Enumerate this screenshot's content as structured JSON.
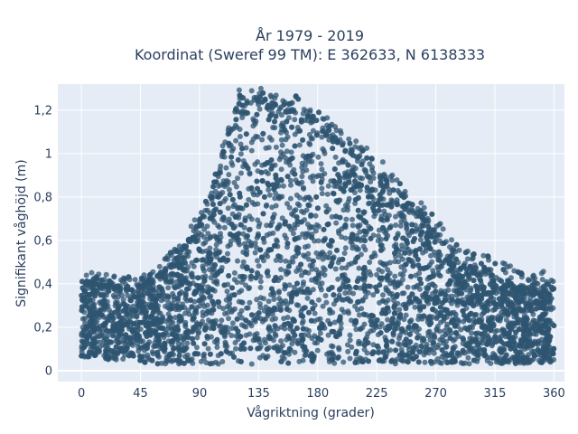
{
  "chart_data": {
    "type": "scatter",
    "title_line1": "År 1979 - 2019",
    "title_line2": "Koordinat (Sweref 99 TM): E 362633, N 6138333",
    "xlabel": "Vågriktning (grader)",
    "ylabel": "Signifikant våghöjd (m)",
    "xlim": [
      -18,
      368
    ],
    "ylim": [
      -0.05,
      1.32
    ],
    "x_ticks": [
      0,
      45,
      90,
      135,
      180,
      225,
      270,
      315,
      360
    ],
    "x_tick_labels": [
      "0",
      "45",
      "90",
      "135",
      "180",
      "225",
      "270",
      "315",
      "360"
    ],
    "y_ticks": [
      0,
      0.2,
      0.4,
      0.6,
      0.8,
      1.0,
      1.2
    ],
    "y_tick_labels": [
      "0",
      "0,2",
      "0,4",
      "0,6",
      "0,8",
      "1",
      "1,2"
    ],
    "grid": true,
    "marker_color": "#2e5470",
    "plot_bg": "#e5ecf6",
    "envelope": {
      "x": [
        0,
        20,
        45,
        60,
        75,
        90,
        100,
        110,
        120,
        130,
        150,
        165,
        180,
        195,
        210,
        225,
        240,
        255,
        270,
        285,
        300,
        315,
        330,
        345,
        360
      ],
      "lower": [
        0.06,
        0.05,
        0.04,
        0.03,
        0.03,
        0.03,
        0.03,
        0.03,
        0.03,
        0.03,
        0.03,
        0.03,
        0.03,
        0.03,
        0.03,
        0.03,
        0.03,
        0.03,
        0.03,
        0.03,
        0.03,
        0.03,
        0.03,
        0.03,
        0.04
      ],
      "upper": [
        0.42,
        0.4,
        0.39,
        0.45,
        0.55,
        0.68,
        0.82,
        1.05,
        1.24,
        1.26,
        1.22,
        1.21,
        1.16,
        1.07,
        1.0,
        0.93,
        0.85,
        0.75,
        0.64,
        0.53,
        0.48,
        0.44,
        0.4,
        0.38,
        0.4
      ]
    }
  }
}
